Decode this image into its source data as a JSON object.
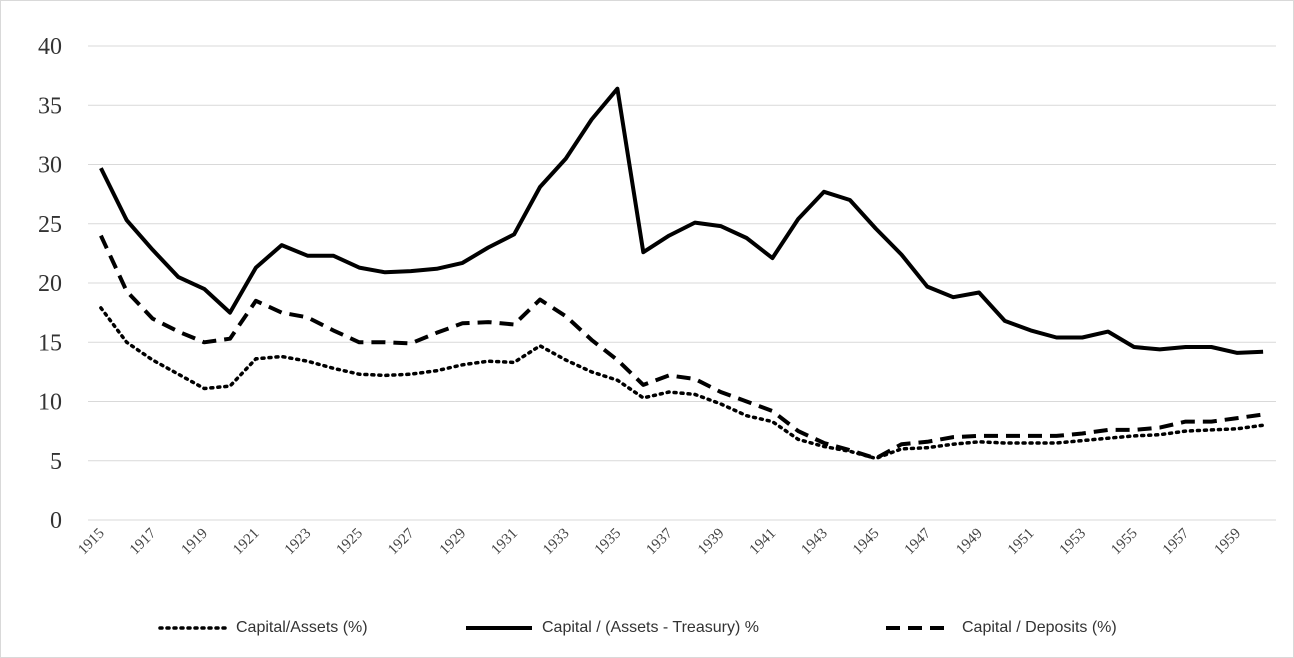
{
  "chart_data": {
    "type": "line",
    "categories": [
      "1915",
      null,
      "1917",
      null,
      "1919",
      null,
      "1921",
      null,
      "1923",
      null,
      "1925",
      null,
      "1927",
      null,
      "1929",
      null,
      "1931",
      null,
      "1933",
      null,
      "1935",
      null,
      "1937",
      null,
      "1939",
      null,
      "1941",
      null,
      "1943",
      null,
      "1945",
      null,
      "1947",
      null,
      "1949",
      null,
      "1951",
      null,
      "1953",
      null,
      "1955",
      null,
      "1957",
      null,
      "1959",
      null
    ],
    "series": [
      {
        "name": "Capital/Assets (%)",
        "color": "#000000",
        "dash": "dotted",
        "values": [
          17.9,
          15.0,
          13.5,
          12.3,
          11.1,
          11.3,
          13.6,
          13.8,
          13.4,
          12.8,
          12.3,
          12.2,
          12.3,
          12.6,
          13.1,
          13.4,
          13.3,
          14.7,
          13.5,
          12.5,
          11.8,
          10.3,
          10.8,
          10.6,
          9.8,
          8.8,
          8.3,
          6.8,
          6.2,
          5.8,
          5.2,
          6.0,
          6.1,
          6.4,
          6.6,
          6.5,
          6.5,
          6.5,
          6.7,
          6.9,
          7.1,
          7.2,
          7.5,
          7.6,
          7.7,
          8.0
        ]
      },
      {
        "name": "Capital / (Assets - Treasury) %",
        "color": "#000000",
        "dash": "solid",
        "values": [
          29.7,
          25.3,
          22.8,
          20.5,
          19.5,
          17.5,
          21.3,
          23.2,
          22.3,
          22.3,
          21.3,
          20.9,
          21.0,
          21.2,
          21.7,
          23.0,
          24.1,
          28.1,
          30.5,
          33.8,
          36.4,
          22.6,
          24.0,
          25.1,
          24.8,
          23.8,
          22.1,
          25.4,
          27.7,
          27.0,
          24.6,
          22.4,
          19.7,
          18.8,
          19.2,
          16.8,
          16.0,
          15.4,
          15.4,
          15.9,
          14.6,
          14.4,
          14.6,
          14.6,
          14.1,
          14.2
        ]
      },
      {
        "name": "Capital / Deposits (%)",
        "color": "#000000",
        "dash": "dashed",
        "values": [
          24.0,
          19.3,
          17.0,
          15.9,
          15.0,
          15.3,
          18.5,
          17.5,
          17.1,
          16.0,
          15.0,
          15.0,
          14.9,
          15.8,
          16.6,
          16.7,
          16.5,
          18.6,
          17.2,
          15.2,
          13.5,
          11.4,
          12.2,
          11.9,
          10.8,
          10.0,
          9.2,
          7.5,
          6.5,
          5.9,
          5.2,
          6.4,
          6.6,
          7.0,
          7.1,
          7.1,
          7.1,
          7.1,
          7.3,
          7.6,
          7.6,
          7.8,
          8.3,
          8.3,
          8.6,
          8.9
        ]
      }
    ],
    "ylim": [
      0,
      40
    ],
    "yticks": [
      0,
      5,
      10,
      15,
      20,
      25,
      30,
      35,
      40
    ],
    "grid": true,
    "legend": "bottom"
  }
}
